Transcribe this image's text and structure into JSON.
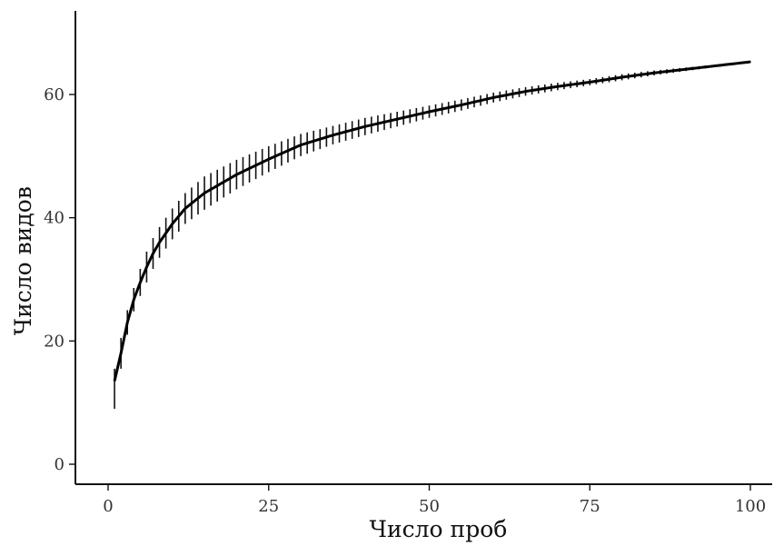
{
  "chart_data": {
    "type": "line",
    "xlabel": "Число проб",
    "ylabel": "Число видов",
    "xlim": [
      0,
      100
    ],
    "ylim": [
      0,
      70
    ],
    "x_ticks": [
      {
        "value": 0,
        "label": "0"
      },
      {
        "value": 25,
        "label": "25"
      },
      {
        "value": 50,
        "label": "50"
      },
      {
        "value": 75,
        "label": "75"
      },
      {
        "value": 100,
        "label": "100"
      }
    ],
    "y_ticks": [
      {
        "value": 0,
        "label": "0"
      },
      {
        "value": 20,
        "label": "20"
      },
      {
        "value": 40,
        "label": "40"
      },
      {
        "value": 60,
        "label": "60"
      }
    ],
    "grid": false,
    "series": [
      {
        "x": [
          1,
          2,
          3,
          4,
          5,
          6,
          7,
          8,
          10,
          12,
          15,
          20,
          25,
          30,
          35,
          40,
          45,
          50,
          55,
          60,
          65,
          70,
          75,
          80,
          85,
          90,
          95,
          100
        ],
        "y": [
          13.5,
          18.0,
          23.0,
          26.7,
          29.5,
          32.0,
          34.2,
          36.0,
          39.0,
          41.5,
          44.0,
          47.0,
          49.5,
          51.8,
          53.4,
          54.8,
          56.0,
          57.2,
          58.3,
          59.5,
          60.5,
          61.3,
          62.0,
          62.8,
          63.5,
          64.1,
          64.7,
          65.3
        ],
        "y_low": [
          9.0,
          15.5,
          21.0,
          24.8,
          27.3,
          29.5,
          31.7,
          33.5,
          36.5,
          39.0,
          41.3,
          44.6,
          47.4,
          50.0,
          51.9,
          53.4,
          54.8,
          56.2,
          57.4,
          58.7,
          59.8,
          60.7,
          61.5,
          62.3,
          63.1,
          63.8,
          64.5,
          65.2
        ],
        "y_high": [
          15.5,
          20.5,
          25.0,
          28.6,
          31.7,
          34.5,
          36.7,
          38.5,
          41.5,
          44.0,
          46.7,
          49.4,
          51.6,
          53.6,
          54.9,
          56.2,
          57.2,
          58.2,
          59.2,
          60.3,
          61.2,
          61.9,
          62.5,
          63.3,
          63.9,
          64.4,
          64.9,
          65.4
        ]
      }
    ]
  }
}
